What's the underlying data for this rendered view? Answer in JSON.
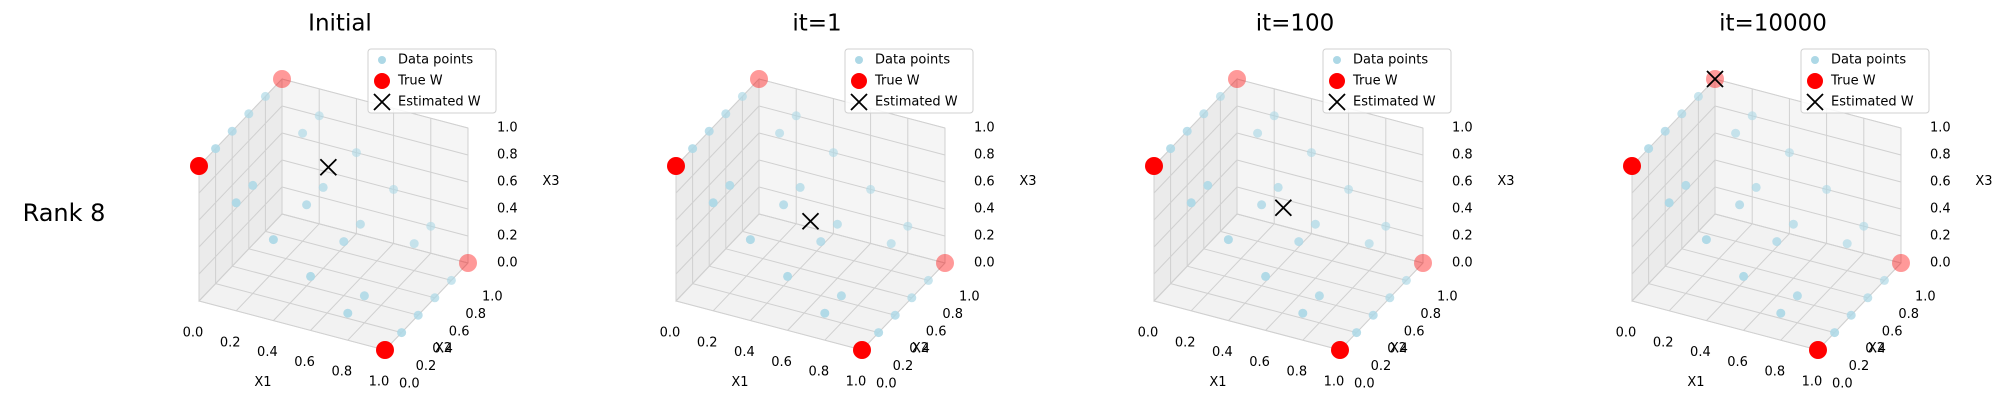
{
  "row_label": "Rank 8",
  "chart_data": [
    {
      "type": "scatter3d",
      "title": "Initial",
      "xlabel": "X1",
      "ylabel": "X2",
      "zlabel": "X3",
      "xlim": [
        0,
        1
      ],
      "ylim": [
        0,
        1
      ],
      "zlim": [
        0,
        1
      ],
      "xticks": [
        {
          "value": 0,
          "label": "0.0"
        },
        {
          "value": 0.2,
          "label": "0.2"
        },
        {
          "value": 0.4,
          "label": "0.4"
        },
        {
          "value": 0.6,
          "label": "0.6"
        },
        {
          "value": 0.8,
          "label": "0.8"
        },
        {
          "value": 1,
          "label": "1.0"
        }
      ],
      "yticks": [
        {
          "value": 0,
          "label": "0.0"
        },
        {
          "value": 0.2,
          "label": "0.2"
        },
        {
          "value": 0.4,
          "label": "0.4"
        },
        {
          "value": 0.6,
          "label": "0.6"
        },
        {
          "value": 0.8,
          "label": "0.8"
        },
        {
          "value": 1,
          "label": "1.0"
        }
      ],
      "zticks": [
        {
          "value": 0,
          "label": "0.0"
        },
        {
          "value": 0.2,
          "label": "0.2"
        },
        {
          "value": 0.4,
          "label": "0.4"
        },
        {
          "value": 0.6,
          "label": "0.6"
        },
        {
          "value": 0.8,
          "label": "0.8"
        },
        {
          "value": 1,
          "label": "1.0"
        }
      ],
      "legend": "upper right",
      "series": [
        {
          "name": "Data points",
          "color": "#add8e6",
          "x": [
            0.2,
            0.4,
            0.6,
            0.8,
            0.2,
            0.4,
            0.6,
            0.8,
            0,
            0,
            0,
            0,
            1,
            1,
            1,
            1,
            0.8,
            0.6,
            0.4,
            0.2,
            0.8,
            0.6,
            0.4,
            0.2
          ],
          "y": [
            0,
            0,
            0,
            0,
            0.2,
            0.4,
            0.6,
            0.8,
            0.2,
            0.4,
            0.6,
            0.8,
            0.2,
            0.4,
            0.6,
            0.8,
            0.2,
            0.4,
            0.6,
            0.8,
            1,
            1,
            1,
            1
          ],
          "z": [
            0.8,
            0.6,
            0.4,
            0.2,
            0.8,
            0.6,
            0.4,
            0.2,
            1,
            1,
            1,
            1,
            0,
            0,
            0,
            0,
            0.2,
            0.4,
            0.6,
            0.8,
            0.2,
            0.4,
            0.6,
            0.8
          ]
        },
        {
          "name": "True W",
          "color": "#ff0000",
          "x": [
            0,
            1,
            1,
            0
          ],
          "y": [
            0,
            0,
            1,
            1
          ],
          "z": [
            1,
            0,
            0,
            1
          ]
        },
        {
          "name": "Estimated W",
          "color": "#000000",
          "x": [
            0.45
          ],
          "y": [
            0.55
          ],
          "z": [
            0.8
          ]
        }
      ]
    },
    {
      "type": "scatter3d",
      "title": "it=1",
      "xlabel": "X1",
      "ylabel": "X2",
      "zlabel": "X3",
      "xlim": [
        0,
        1
      ],
      "ylim": [
        0,
        1
      ],
      "zlim": [
        0,
        1
      ],
      "xticks": [
        {
          "value": 0,
          "label": "0.0"
        },
        {
          "value": 0.2,
          "label": "0.2"
        },
        {
          "value": 0.4,
          "label": "0.4"
        },
        {
          "value": 0.6,
          "label": "0.6"
        },
        {
          "value": 0.8,
          "label": "0.8"
        },
        {
          "value": 1,
          "label": "1.0"
        }
      ],
      "yticks": [
        {
          "value": 0,
          "label": "0.0"
        },
        {
          "value": 0.2,
          "label": "0.2"
        },
        {
          "value": 0.4,
          "label": "0.4"
        },
        {
          "value": 0.6,
          "label": "0.6"
        },
        {
          "value": 0.8,
          "label": "0.8"
        },
        {
          "value": 1,
          "label": "1.0"
        }
      ],
      "zticks": [
        {
          "value": 0,
          "label": "0.0"
        },
        {
          "value": 0.2,
          "label": "0.2"
        },
        {
          "value": 0.4,
          "label": "0.4"
        },
        {
          "value": 0.6,
          "label": "0.6"
        },
        {
          "value": 0.8,
          "label": "0.8"
        },
        {
          "value": 1,
          "label": "1.0"
        }
      ],
      "legend": "upper right",
      "series": [
        {
          "name": "Data points",
          "color": "#add8e6",
          "x": [
            0.2,
            0.4,
            0.6,
            0.8,
            0.2,
            0.4,
            0.6,
            0.8,
            0,
            0,
            0,
            0,
            1,
            1,
            1,
            1,
            0.8,
            0.6,
            0.4,
            0.2,
            0.8,
            0.6,
            0.4,
            0.2
          ],
          "y": [
            0,
            0,
            0,
            0,
            0.2,
            0.4,
            0.6,
            0.8,
            0.2,
            0.4,
            0.6,
            0.8,
            0.2,
            0.4,
            0.6,
            0.8,
            0.2,
            0.4,
            0.6,
            0.8,
            1,
            1,
            1,
            1
          ],
          "z": [
            0.8,
            0.6,
            0.4,
            0.2,
            0.8,
            0.6,
            0.4,
            0.2,
            1,
            1,
            1,
            1,
            0,
            0,
            0,
            0,
            0.2,
            0.4,
            0.6,
            0.8,
            0.2,
            0.4,
            0.6,
            0.8
          ]
        },
        {
          "name": "True W",
          "color": "#ff0000",
          "x": [
            0,
            1,
            1,
            0
          ],
          "y": [
            0,
            0,
            1,
            1
          ],
          "z": [
            1,
            0,
            0,
            1
          ]
        },
        {
          "name": "Estimated W",
          "color": "#000000",
          "x": [
            0.5
          ],
          "y": [
            0.5
          ],
          "z": [
            0.45
          ]
        }
      ]
    },
    {
      "type": "scatter3d",
      "title": "it=100",
      "xlabel": "X1",
      "ylabel": "X2",
      "zlabel": "X3",
      "xlim": [
        0,
        1
      ],
      "ylim": [
        0,
        1
      ],
      "zlim": [
        0,
        1
      ],
      "xticks": [
        {
          "value": 0,
          "label": "0.0"
        },
        {
          "value": 0.2,
          "label": "0.2"
        },
        {
          "value": 0.4,
          "label": "0.4"
        },
        {
          "value": 0.6,
          "label": "0.6"
        },
        {
          "value": 0.8,
          "label": "0.8"
        },
        {
          "value": 1,
          "label": "1.0"
        }
      ],
      "yticks": [
        {
          "value": 0,
          "label": "0.0"
        },
        {
          "value": 0.2,
          "label": "0.2"
        },
        {
          "value": 0.4,
          "label": "0.4"
        },
        {
          "value": 0.6,
          "label": "0.6"
        },
        {
          "value": 0.8,
          "label": "0.8"
        },
        {
          "value": 1,
          "label": "1.0"
        }
      ],
      "zticks": [
        {
          "value": 0,
          "label": "0.0"
        },
        {
          "value": 0.2,
          "label": "0.2"
        },
        {
          "value": 0.4,
          "label": "0.4"
        },
        {
          "value": 0.6,
          "label": "0.6"
        },
        {
          "value": 0.8,
          "label": "0.8"
        },
        {
          "value": 1,
          "label": "1.0"
        }
      ],
      "legend": "upper right",
      "series": [
        {
          "name": "Data points",
          "color": "#add8e6",
          "x": [
            0.2,
            0.4,
            0.6,
            0.8,
            0.2,
            0.4,
            0.6,
            0.8,
            0,
            0,
            0,
            0,
            1,
            1,
            1,
            1,
            0.8,
            0.6,
            0.4,
            0.2,
            0.8,
            0.6,
            0.4,
            0.2
          ],
          "y": [
            0,
            0,
            0,
            0,
            0.2,
            0.4,
            0.6,
            0.8,
            0.2,
            0.4,
            0.6,
            0.8,
            0.2,
            0.4,
            0.6,
            0.8,
            0.2,
            0.4,
            0.6,
            0.8,
            1,
            1,
            1,
            1
          ],
          "z": [
            0.8,
            0.6,
            0.4,
            0.2,
            0.8,
            0.6,
            0.4,
            0.2,
            1,
            1,
            1,
            1,
            0,
            0,
            0,
            0,
            0.2,
            0.4,
            0.6,
            0.8,
            0.2,
            0.4,
            0.6,
            0.8
          ]
        },
        {
          "name": "True W",
          "color": "#ff0000",
          "x": [
            0,
            1,
            1,
            0
          ],
          "y": [
            0,
            0,
            1,
            1
          ],
          "z": [
            1,
            0,
            0,
            1
          ]
        },
        {
          "name": "Estimated W",
          "color": "#000000",
          "x": [
            0.45
          ],
          "y": [
            0.55
          ],
          "z": [
            0.5
          ]
        }
      ]
    },
    {
      "type": "scatter3d",
      "title": "it=10000",
      "xlabel": "X1",
      "ylabel": "X2",
      "zlabel": "X3",
      "xlim": [
        0,
        1
      ],
      "ylim": [
        0,
        1
      ],
      "zlim": [
        0,
        1
      ],
      "xticks": [
        {
          "value": 0,
          "label": "0.0"
        },
        {
          "value": 0.2,
          "label": "0.2"
        },
        {
          "value": 0.4,
          "label": "0.4"
        },
        {
          "value": 0.6,
          "label": "0.6"
        },
        {
          "value": 0.8,
          "label": "0.8"
        },
        {
          "value": 1,
          "label": "1.0"
        }
      ],
      "yticks": [
        {
          "value": 0,
          "label": "0.0"
        },
        {
          "value": 0.2,
          "label": "0.2"
        },
        {
          "value": 0.4,
          "label": "0.4"
        },
        {
          "value": 0.6,
          "label": "0.6"
        },
        {
          "value": 0.8,
          "label": "0.8"
        },
        {
          "value": 1,
          "label": "1.0"
        }
      ],
      "zticks": [
        {
          "value": 0,
          "label": "0.0"
        },
        {
          "value": 0.2,
          "label": "0.2"
        },
        {
          "value": 0.4,
          "label": "0.4"
        },
        {
          "value": 0.6,
          "label": "0.6"
        },
        {
          "value": 0.8,
          "label": "0.8"
        },
        {
          "value": 1,
          "label": "1.0"
        }
      ],
      "legend": "upper right",
      "series": [
        {
          "name": "Data points",
          "color": "#add8e6",
          "x": [
            0.2,
            0.4,
            0.6,
            0.8,
            0.2,
            0.4,
            0.6,
            0.8,
            0,
            0,
            0,
            0,
            1,
            1,
            1,
            1,
            0.8,
            0.6,
            0.4,
            0.2,
            0.8,
            0.6,
            0.4,
            0.2
          ],
          "y": [
            0,
            0,
            0,
            0,
            0.2,
            0.4,
            0.6,
            0.8,
            0.2,
            0.4,
            0.6,
            0.8,
            0.2,
            0.4,
            0.6,
            0.8,
            0.2,
            0.4,
            0.6,
            0.8,
            1,
            1,
            1,
            1
          ],
          "z": [
            0.8,
            0.6,
            0.4,
            0.2,
            0.8,
            0.6,
            0.4,
            0.2,
            1,
            1,
            1,
            1,
            0,
            0,
            0,
            0,
            0.2,
            0.4,
            0.6,
            0.8,
            0.2,
            0.4,
            0.6,
            0.8
          ]
        },
        {
          "name": "True W",
          "color": "#ff0000",
          "x": [
            0,
            1,
            1,
            0
          ],
          "y": [
            0,
            0,
            1,
            1
          ],
          "z": [
            1,
            0,
            0,
            1
          ]
        },
        {
          "name": "Estimated W",
          "color": "#000000",
          "x": [
            0
          ],
          "y": [
            1
          ],
          "z": [
            1
          ]
        }
      ]
    }
  ]
}
